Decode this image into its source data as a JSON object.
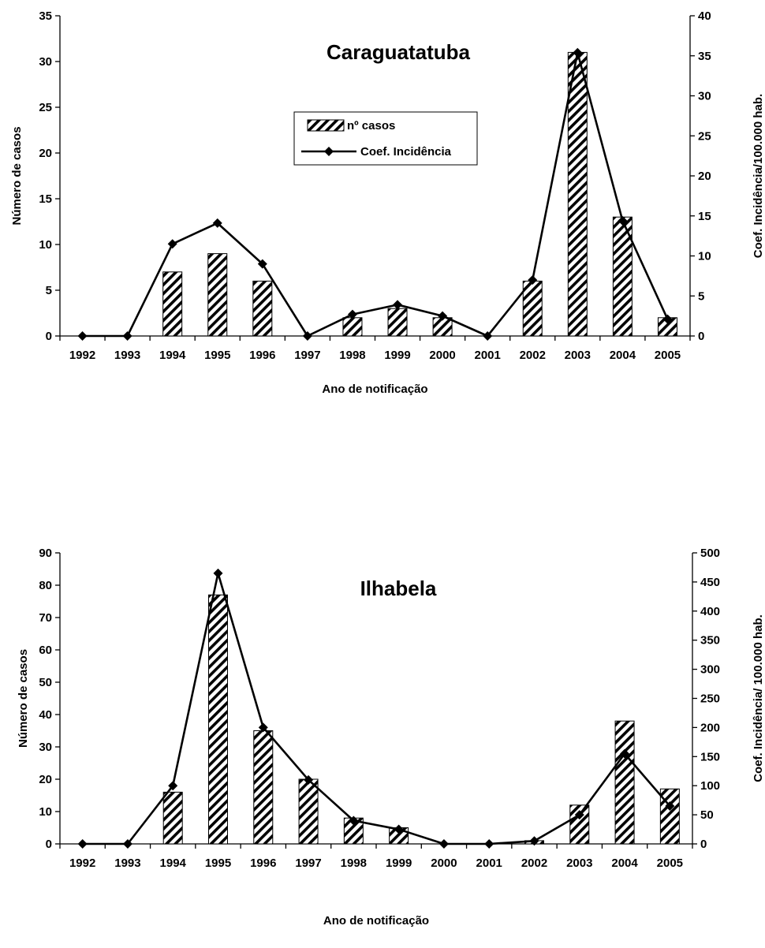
{
  "chart_data": [
    {
      "type": "bar",
      "title": "Caraguatatuba",
      "xlabel": "Ano de notificação",
      "ylabel": "Número de casos",
      "y2label": "Coef. Incidência/100.000 hab.",
      "categories": [
        "1992",
        "1993",
        "1994",
        "1995",
        "1996",
        "1997",
        "1998",
        "1999",
        "2000",
        "2001",
        "2002",
        "2003",
        "2004",
        "2005"
      ],
      "ylim": [
        0,
        35
      ],
      "yticks": [
        0,
        5,
        10,
        15,
        20,
        25,
        30,
        35
      ],
      "y2lim": [
        0,
        40
      ],
      "y2ticks": [
        0,
        5,
        10,
        15,
        20,
        25,
        30,
        35,
        40
      ],
      "legend": {
        "position": "top-center",
        "bar_label": "nº casos",
        "line_label": "Coef. Incidência"
      },
      "series": [
        {
          "name": "nº casos",
          "type": "bar",
          "axis": "left",
          "values": [
            0,
            0,
            7,
            9,
            6,
            0,
            2,
            3,
            2,
            0,
            6,
            31,
            13,
            2
          ]
        },
        {
          "name": "Coef. Incidência",
          "type": "line",
          "axis": "right",
          "values": [
            0,
            0,
            11.5,
            14.1,
            9,
            0,
            2.7,
            3.9,
            2.5,
            0,
            7,
            35.4,
            14.4,
            2.1
          ]
        }
      ]
    },
    {
      "type": "bar",
      "title": "Ilhabela",
      "xlabel": "Ano de notificação",
      "ylabel": "Número de casos",
      "y2label": "Coef. Incidência/ 100.000 hab.",
      "categories": [
        "1992",
        "1993",
        "1994",
        "1995",
        "1996",
        "1997",
        "1998",
        "1999",
        "2000",
        "2001",
        "2002",
        "2003",
        "2004",
        "2005"
      ],
      "ylim": [
        0,
        90
      ],
      "yticks": [
        0,
        10,
        20,
        30,
        40,
        50,
        60,
        70,
        80,
        90
      ],
      "y2lim": [
        0,
        500
      ],
      "y2ticks": [
        0,
        50,
        100,
        150,
        200,
        250,
        300,
        350,
        400,
        450,
        500
      ],
      "series": [
        {
          "name": "nº casos",
          "type": "bar",
          "axis": "left",
          "values": [
            0,
            0,
            16,
            77,
            35,
            20,
            8,
            5,
            0,
            0,
            1,
            12,
            38,
            17
          ]
        },
        {
          "name": "Coef. Incidência",
          "type": "line",
          "axis": "right",
          "values": [
            0,
            0,
            100,
            465,
            200,
            110,
            40,
            25,
            0,
            0,
            5,
            50,
            155,
            65
          ]
        }
      ]
    }
  ]
}
